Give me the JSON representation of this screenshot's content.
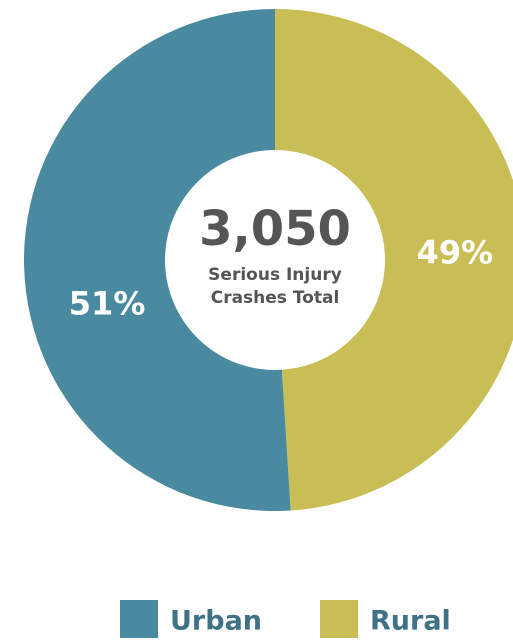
{
  "chart_data": {
    "type": "donut",
    "center_label": "3,050",
    "center_text": [
      "Serious Injury",
      "Crashes Total"
    ],
    "categories": [
      "Urban",
      "Rural"
    ],
    "values": [
      51,
      49
    ],
    "value_labels": [
      "51%",
      "49%"
    ],
    "colors": [
      "#4a8aa1",
      "#c9bd56"
    ]
  }
}
